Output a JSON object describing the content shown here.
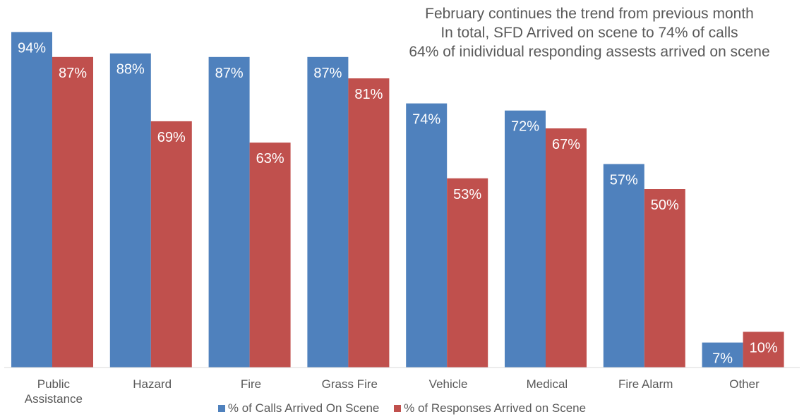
{
  "chart_data": {
    "type": "bar",
    "title": "",
    "xlabel": "",
    "ylabel": "",
    "ylim": [
      0,
      100
    ],
    "grid": false,
    "legend_position": "bottom",
    "categories": [
      [
        "Public",
        "Assistance"
      ],
      [
        "Hazard"
      ],
      [
        "Fire"
      ],
      [
        "Grass Fire"
      ],
      [
        "Vehicle"
      ],
      [
        "Medical"
      ],
      [
        "Fire Alarm"
      ],
      [
        "Other"
      ]
    ],
    "series": [
      {
        "name": "% of Calls Arrived On Scene",
        "color": "#4f81bd",
        "values": [
          94,
          88,
          87,
          87,
          74,
          72,
          57,
          7
        ],
        "labels": [
          "94%",
          "88%",
          "87%",
          "87%",
          "74%",
          "72%",
          "57%",
          "7%"
        ]
      },
      {
        "name": "% of Responses Arrived on Scene",
        "color": "#c0504d",
        "values": [
          87,
          69,
          63,
          81,
          53,
          67,
          50,
          10
        ],
        "labels": [
          "87%",
          "69%",
          "63%",
          "81%",
          "53%",
          "67%",
          "50%",
          "10%"
        ]
      }
    ],
    "annotation": [
      "February continues the trend from previous month",
      "In total, SFD Arrived on scene to 74% of calls",
      "64% of inidividual responding assests arrived on scene"
    ]
  }
}
